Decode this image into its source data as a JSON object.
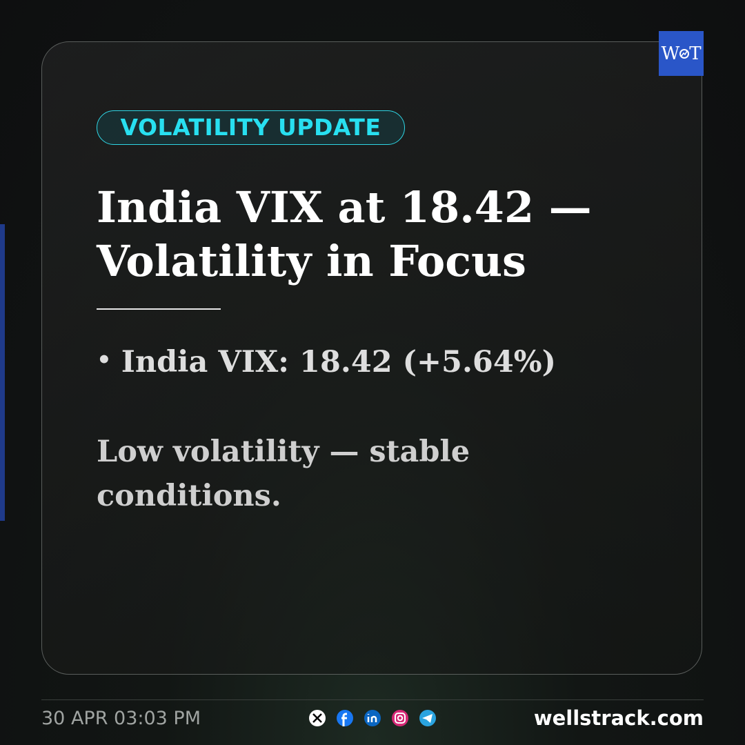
{
  "badge": "VOLATILITY UPDATE",
  "title": {
    "lines": [
      "India VIX at 18.42 —",
      "Volatility in Focus"
    ]
  },
  "bullet": "India VIX: 18.42 (+5.64%)",
  "note": "Low volatility — stable conditions.",
  "logo": {
    "left": "W",
    "right": "T"
  },
  "footer": {
    "timestamp": "30 APR 03:03 PM",
    "website": "wellstrack.com"
  }
}
